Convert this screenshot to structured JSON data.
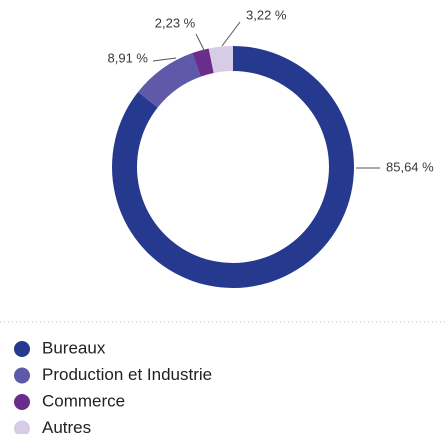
{
  "chart_data": {
    "type": "donut",
    "categories": [
      "Bureaux",
      "Production et Industrie",
      "Commerce",
      "Autres"
    ],
    "values": [
      85.64,
      8.91,
      2.23,
      3.22
    ],
    "value_labels": [
      "85,64 %",
      "8,91 %",
      "2,23 %",
      "3,22 %"
    ],
    "colors": [
      "#253a8e",
      "#5e5aa9",
      "#6a2d8c",
      "#d6cce6"
    ]
  }
}
